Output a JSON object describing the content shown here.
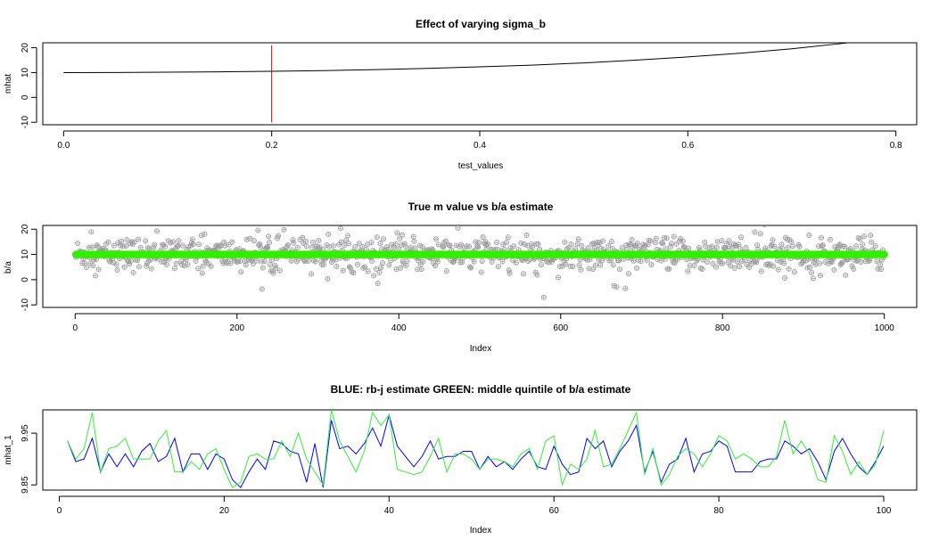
{
  "chart_data": [
    {
      "type": "line",
      "title": "Effect of varying sigma_b",
      "xlabel": "test_values",
      "ylabel": "mhat",
      "xlim": [
        -0.02,
        0.82
      ],
      "ylim": [
        -11,
        22
      ],
      "xticks": [
        0.0,
        0.2,
        0.4,
        0.6,
        0.8
      ],
      "xtick_labels": [
        "0.0",
        "0.2",
        "0.4",
        "0.6",
        "0.8"
      ],
      "yticks": [
        -10,
        0,
        10,
        20
      ],
      "ytick_labels": [
        "-10",
        "0",
        "10",
        "20"
      ],
      "grid": false,
      "series": [
        {
          "color": "#000000",
          "x": [
            0.0,
            0.05,
            0.1,
            0.15,
            0.2,
            0.25,
            0.3,
            0.35,
            0.4,
            0.45,
            0.5,
            0.55,
            0.6,
            0.65,
            0.7,
            0.75,
            0.8
          ],
          "y": [
            10.0,
            10.05,
            10.15,
            10.3,
            10.5,
            10.8,
            11.2,
            11.7,
            12.3,
            13.0,
            13.9,
            15.0,
            16.3,
            17.8,
            19.6,
            21.8,
            24.5
          ]
        }
      ],
      "vline": {
        "x": 0.2,
        "ymin": -10,
        "ymax": 21,
        "color": "#cc0000"
      }
    },
    {
      "type": "scatter",
      "title": "True m value vs b/a estimate",
      "xlabel": "Index",
      "ylabel": "b/a",
      "xlim": [
        -40,
        1040
      ],
      "ylim": [
        -11,
        21.5
      ],
      "xticks": [
        0,
        200,
        400,
        600,
        800,
        1000
      ],
      "xtick_labels": [
        "0",
        "200",
        "400",
        "600",
        "800",
        "1000"
      ],
      "yticks": [
        -10,
        0,
        10,
        20
      ],
      "ytick_labels": [
        "-10",
        "0",
        "10",
        "20"
      ],
      "grid": false,
      "n_points": 1000,
      "true_value": 10,
      "estimate_color": "#999999",
      "true_color": "#33ee00"
    },
    {
      "type": "line",
      "title": "BLUE: rb-j estimate GREEN: middle quintile of b/a estimate",
      "xlabel": "Index",
      "ylabel": "mhat_1",
      "xlim": [
        -2,
        104
      ],
      "ylim": [
        9.84,
        9.995
      ],
      "xticks": [
        0,
        20,
        40,
        60,
        80,
        100
      ],
      "xtick_labels": [
        "0",
        "20",
        "40",
        "60",
        "80",
        "100"
      ],
      "yticks": [
        9.85,
        9.95
      ],
      "ytick_labels": [
        "9.85",
        "9.95"
      ],
      "grid": false,
      "series": [
        {
          "color": "#0000ff",
          "x": [
            1,
            2,
            3,
            4,
            5,
            6,
            7,
            8,
            9,
            10,
            11,
            12,
            13,
            14,
            15,
            16,
            17,
            18,
            19,
            20,
            21,
            22,
            23,
            24,
            25,
            26,
            27,
            28,
            29,
            30,
            31,
            32,
            33,
            34,
            35,
            36,
            37,
            38,
            39,
            40,
            41,
            42,
            43,
            44,
            45,
            46,
            47,
            48,
            49,
            50,
            51,
            52,
            53,
            54,
            55,
            56,
            57,
            58,
            59,
            60,
            61,
            62,
            63,
            64,
            65,
            66,
            67,
            68,
            69,
            70,
            71,
            72,
            73,
            74,
            75,
            76,
            77,
            78,
            79,
            80,
            81,
            82,
            83,
            84,
            85,
            86,
            87,
            88,
            89,
            90,
            91,
            92,
            93,
            94,
            95,
            96,
            97,
            98,
            99,
            100
          ],
          "y": [
            9.935,
            9.895,
            9.9,
            9.94,
            9.875,
            9.91,
            9.885,
            9.91,
            9.885,
            9.915,
            9.93,
            9.895,
            9.905,
            9.94,
            9.875,
            9.91,
            9.91,
            9.88,
            9.91,
            9.9,
            9.86,
            9.845,
            9.875,
            9.9,
            9.88,
            9.935,
            9.93,
            9.915,
            9.91,
            9.855,
            9.93,
            9.845,
            9.975,
            9.92,
            9.925,
            9.91,
            9.93,
            9.96,
            9.925,
            9.985,
            9.925,
            9.905,
            9.885,
            9.905,
            9.935,
            9.9,
            9.905,
            9.905,
            9.915,
            9.915,
            9.88,
            9.905,
            9.885,
            9.895,
            9.88,
            9.9,
            9.915,
            9.885,
            9.88,
            9.925,
            9.89,
            9.87,
            9.875,
            9.94,
            9.92,
            9.935,
            9.885,
            9.915,
            9.935,
            9.965,
            9.875,
            9.915,
            9.855,
            9.89,
            9.9,
            9.94,
            9.875,
            9.91,
            9.915,
            9.935,
            9.925,
            9.875,
            9.875,
            9.875,
            9.895,
            9.9,
            9.9,
            9.935,
            9.925,
            9.91,
            9.92,
            9.895,
            9.86,
            9.915,
            9.94,
            9.91,
            9.885,
            9.87,
            9.895,
            9.925
          ]
        },
        {
          "color": "#33ee33",
          "x": [
            1,
            2,
            3,
            4,
            5,
            6,
            7,
            8,
            9,
            10,
            11,
            12,
            13,
            14,
            15,
            16,
            17,
            18,
            19,
            20,
            21,
            22,
            23,
            24,
            25,
            26,
            27,
            28,
            29,
            30,
            31,
            32,
            33,
            34,
            35,
            36,
            37,
            38,
            39,
            40,
            41,
            42,
            43,
            44,
            45,
            46,
            47,
            48,
            49,
            50,
            51,
            52,
            53,
            54,
            55,
            56,
            57,
            58,
            59,
            60,
            61,
            62,
            63,
            64,
            65,
            66,
            67,
            68,
            69,
            70,
            71,
            72,
            73,
            74,
            75,
            76,
            77,
            78,
            79,
            80,
            81,
            82,
            83,
            84,
            85,
            86,
            87,
            88,
            89,
            90,
            91,
            92,
            93,
            94,
            95,
            96,
            97,
            98,
            99,
            100
          ],
          "y": [
            9.935,
            9.9,
            9.92,
            9.99,
            9.875,
            9.92,
            9.925,
            9.94,
            9.9,
            9.9,
            9.9,
            9.935,
            9.955,
            9.875,
            9.875,
            9.895,
            9.88,
            9.91,
            9.92,
            9.88,
            9.845,
            9.855,
            9.905,
            9.91,
            9.9,
            9.9,
            9.935,
            9.905,
            9.95,
            9.9,
            9.875,
            9.85,
            9.995,
            9.935,
            9.905,
            9.875,
            9.915,
            9.99,
            9.965,
            9.985,
            9.88,
            9.875,
            9.87,
            9.875,
            9.905,
            9.94,
            9.875,
            9.91,
            9.91,
            9.9,
            9.88,
            9.9,
            9.9,
            9.895,
            9.885,
            9.91,
            9.92,
            9.88,
            9.935,
            9.945,
            9.85,
            9.89,
            9.88,
            9.9,
            9.955,
            9.885,
            9.89,
            9.92,
            9.955,
            9.99,
            9.87,
            9.92,
            9.85,
            9.87,
            9.905,
            9.92,
            9.91,
            9.885,
            9.91,
            9.945,
            9.935,
            9.9,
            9.91,
            9.9,
            9.885,
            9.885,
            9.905,
            9.975,
            9.91,
            9.935,
            9.91,
            9.86,
            9.855,
            9.945,
            9.915,
            9.87,
            9.895,
            9.87,
            9.89,
            9.955
          ]
        }
      ]
    }
  ]
}
